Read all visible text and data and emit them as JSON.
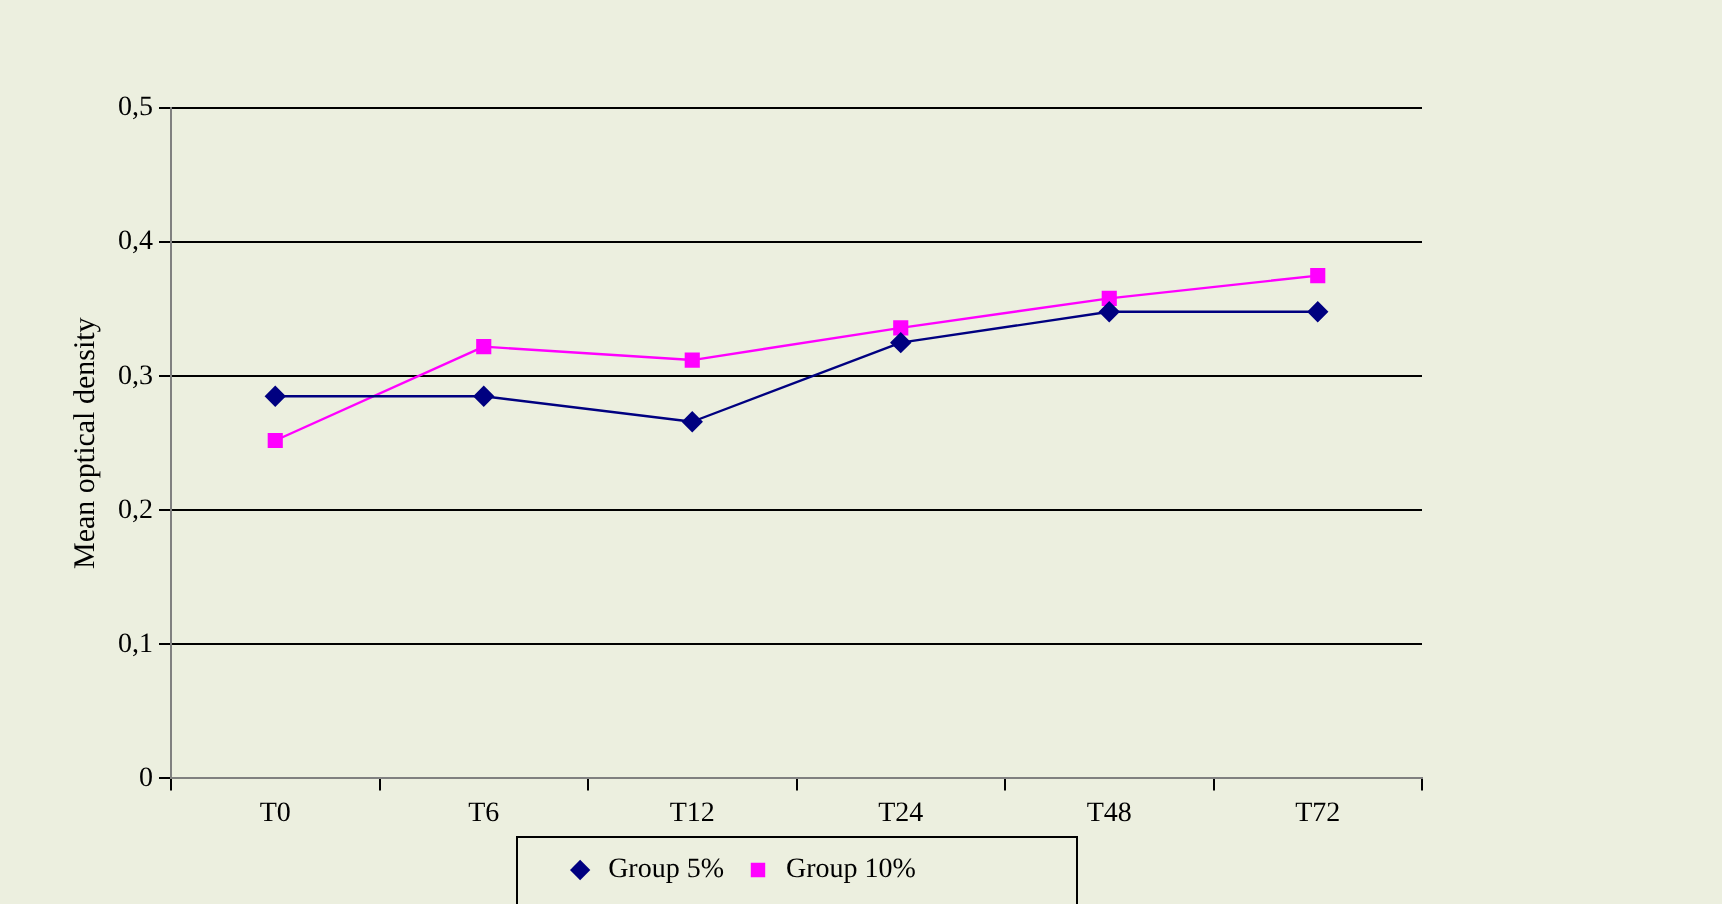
{
  "chart_data": {
    "type": "line",
    "ylabel": "Mean optical density",
    "categories": [
      "T0",
      "T6",
      "T12",
      "T24",
      "T48",
      "T72"
    ],
    "series": [
      {
        "name": "Group 5%",
        "color": "#000080",
        "marker": "diamond",
        "values": [
          0.285,
          0.285,
          0.266,
          0.325,
          0.348,
          0.348
        ]
      },
      {
        "name": "Group 10%",
        "color": "#ff00ff",
        "marker": "square",
        "values": [
          0.252,
          0.322,
          0.312,
          0.336,
          0.358,
          0.375
        ]
      }
    ],
    "ylim": [
      0,
      0.5
    ],
    "yticks": [
      0,
      {
        "value": 0.1,
        "label": "0,1"
      },
      {
        "value": 0.2,
        "label": "0,2"
      },
      {
        "value": 0.3,
        "label": "0,3"
      },
      {
        "value": 0.4,
        "label": "0,4"
      },
      {
        "value": 0.5,
        "label": "0,5"
      }
    ],
    "grid": "y",
    "legend": "bottom"
  }
}
